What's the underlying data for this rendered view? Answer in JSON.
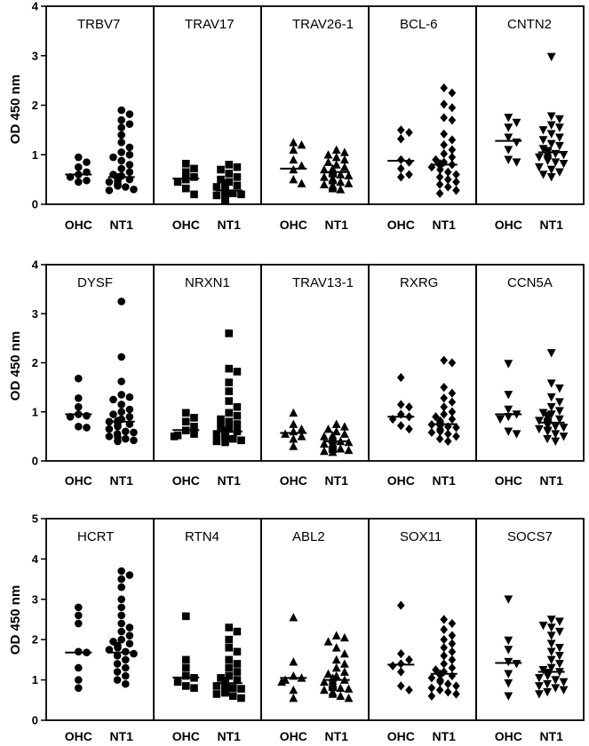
{
  "chart_data": {
    "type": "scatter",
    "ylabel": "OD 450 nm",
    "groups": [
      "OHC",
      "NT1"
    ],
    "rows": [
      {
        "ylim": [
          0,
          4
        ],
        "yticks": [
          "0",
          "1",
          "2",
          "3",
          "4"
        ],
        "panels": [
          {
            "name": "TRBV7",
            "marker": "circle",
            "OHC": [
              0.95,
              0.85,
              0.75,
              0.65,
              0.6,
              0.55,
              0.48,
              0.45
            ],
            "OHC_median": 0.6,
            "NT1": [
              1.9,
              1.82,
              1.7,
              1.62,
              1.55,
              1.4,
              1.25,
              1.15,
              1.05,
              1.0,
              0.95,
              0.88,
              0.8,
              0.72,
              0.65,
              0.6,
              0.57,
              0.55,
              0.52,
              0.5,
              0.47,
              0.45,
              0.42,
              0.4,
              0.37,
              0.35,
              0.3,
              0.28
            ],
            "NT1_median": 0.55
          },
          {
            "name": "TRAV17",
            "marker": "square",
            "OHC": [
              0.82,
              0.72,
              0.65,
              0.55,
              0.5,
              0.45,
              0.32,
              0.2
            ],
            "OHC_median": 0.52,
            "NT1": [
              0.8,
              0.75,
              0.7,
              0.62,
              0.55,
              0.5,
              0.45,
              0.42,
              0.38,
              0.35,
              0.33,
              0.3,
              0.28,
              0.26,
              0.24,
              0.22,
              0.2,
              0.18,
              0.16,
              0.15,
              0.14,
              0.13,
              0.12,
              0.11,
              0.1,
              0.1,
              0.09,
              0.08
            ],
            "NT1_median": 0.28
          },
          {
            "name": "TRAV26-1",
            "marker": "triangle",
            "OHC": [
              1.25,
              1.2,
              1.1,
              0.9,
              0.78,
              0.7,
              0.5,
              0.42
            ],
            "OHC_median": 0.72,
            "NT1": [
              1.1,
              1.05,
              1.0,
              0.95,
              0.9,
              0.85,
              0.8,
              0.75,
              0.72,
              0.7,
              0.68,
              0.66,
              0.64,
              0.62,
              0.6,
              0.58,
              0.55,
              0.52,
              0.5,
              0.48,
              0.45,
              0.42,
              0.4,
              0.38,
              0.35,
              0.32,
              0.3
            ],
            "NT1_median": 0.65
          },
          {
            "name": "BCL-6",
            "marker": "diamond",
            "OHC": [
              1.5,
              1.45,
              1.32,
              0.9,
              0.85,
              0.72,
              0.6,
              0.55
            ],
            "OHC_median": 0.88,
            "NT1": [
              2.35,
              2.25,
              2.02,
              1.95,
              1.75,
              1.7,
              1.42,
              1.3,
              1.2,
              1.1,
              1.02,
              0.95,
              0.9,
              0.85,
              0.82,
              0.8,
              0.78,
              0.75,
              0.7,
              0.65,
              0.6,
              0.55,
              0.5,
              0.45,
              0.4,
              0.35,
              0.28,
              0.22
            ],
            "NT1_median": 0.8
          },
          {
            "name": "CNTN2",
            "marker": "triangle-down",
            "OHC": [
              1.75,
              1.65,
              1.55,
              1.35,
              1.25,
              1.1,
              0.9,
              0.85
            ],
            "OHC_median": 1.28,
            "NT1": [
              2.98,
              1.78,
              1.72,
              1.6,
              1.55,
              1.5,
              1.42,
              1.35,
              1.3,
              1.22,
              1.18,
              1.12,
              1.08,
              1.05,
              1.02,
              1.0,
              0.98,
              0.95,
              0.92,
              0.88,
              0.85,
              0.82,
              0.75,
              0.7,
              0.65,
              0.6,
              0.55
            ],
            "NT1_median": 1.05
          }
        ]
      },
      {
        "ylim": [
          0,
          4
        ],
        "yticks": [
          "0",
          "1",
          "2",
          "3",
          "4"
        ],
        "panels": [
          {
            "name": "DYSF",
            "marker": "circle",
            "OHC": [
              1.68,
              1.28,
              1.1,
              0.95,
              0.92,
              0.9,
              0.7,
              0.68
            ],
            "OHC_median": 0.95,
            "NT1": [
              3.25,
              2.12,
              1.62,
              1.35,
              1.3,
              1.25,
              1.15,
              1.05,
              1.0,
              0.95,
              0.9,
              0.85,
              0.82,
              0.8,
              0.78,
              0.75,
              0.72,
              0.7,
              0.65,
              0.6,
              0.58,
              0.55,
              0.5,
              0.48,
              0.45,
              0.42,
              0.4
            ],
            "NT1_median": 0.8
          },
          {
            "name": "NRXN1",
            "marker": "square",
            "OHC": [
              0.98,
              0.88,
              0.8,
              0.7,
              0.62,
              0.55,
              0.52,
              0.5
            ],
            "OHC_median": 0.63,
            "NT1": [
              2.6,
              1.88,
              1.82,
              1.6,
              1.42,
              1.22,
              1.1,
              0.98,
              0.92,
              0.85,
              0.8,
              0.75,
              0.7,
              0.65,
              0.62,
              0.6,
              0.58,
              0.56,
              0.55,
              0.52,
              0.5,
              0.48,
              0.45,
              0.42,
              0.4,
              0.38
            ],
            "NT1_median": 0.6
          },
          {
            "name": "TRAV13-1",
            "marker": "triangle",
            "OHC": [
              0.98,
              0.75,
              0.65,
              0.6,
              0.55,
              0.5,
              0.45,
              0.3
            ],
            "OHC_median": 0.57,
            "NT1": [
              0.75,
              0.7,
              0.65,
              0.6,
              0.55,
              0.52,
              0.5,
              0.48,
              0.46,
              0.44,
              0.42,
              0.4,
              0.38,
              0.36,
              0.35,
              0.34,
              0.32,
              0.3,
              0.28,
              0.26,
              0.25,
              0.24,
              0.22,
              0.2,
              0.18
            ],
            "NT1_median": 0.4
          },
          {
            "name": "RXRG",
            "marker": "diamond",
            "OHC": [
              1.7,
              1.15,
              1.1,
              0.95,
              0.9,
              0.85,
              0.72,
              0.65
            ],
            "OHC_median": 0.9,
            "NT1": [
              2.05,
              2.0,
              1.5,
              1.38,
              1.28,
              1.2,
              1.1,
              1.0,
              0.95,
              0.9,
              0.85,
              0.82,
              0.8,
              0.78,
              0.76,
              0.74,
              0.72,
              0.7,
              0.68,
              0.65,
              0.62,
              0.6,
              0.58,
              0.55,
              0.5,
              0.45,
              0.4
            ],
            "NT1_median": 0.75
          },
          {
            "name": "CCN5A",
            "marker": "triangle-down",
            "OHC": [
              1.98,
              1.35,
              1.05,
              0.95,
              0.9,
              0.85,
              0.6,
              0.55
            ],
            "OHC_median": 0.95,
            "NT1": [
              2.2,
              1.58,
              1.48,
              1.3,
              1.2,
              1.1,
              1.02,
              0.98,
              0.95,
              0.92,
              0.88,
              0.85,
              0.82,
              0.8,
              0.78,
              0.76,
              0.74,
              0.72,
              0.7,
              0.68,
              0.65,
              0.62,
              0.6,
              0.55,
              0.5,
              0.45,
              0.4
            ],
            "NT1_median": 0.78
          }
        ]
      },
      {
        "ylim": [
          0,
          5
        ],
        "yticks": [
          "0",
          "1",
          "2",
          "3",
          "4",
          "5"
        ],
        "panels": [
          {
            "name": "HCRT",
            "marker": "circle",
            "OHC": [
              2.8,
              2.6,
              2.4,
              1.7,
              1.68,
              1.3,
              1.0,
              0.8
            ],
            "OHC_median": 1.68,
            "NT1": [
              3.7,
              3.6,
              3.5,
              3.3,
              3.0,
              2.8,
              2.6,
              2.4,
              2.3,
              2.2,
              2.1,
              2.0,
              1.95,
              1.9,
              1.85,
              1.8,
              1.75,
              1.7,
              1.65,
              1.6,
              1.5,
              1.4,
              1.3,
              1.2,
              1.1,
              1.0,
              0.9
            ],
            "NT1_median": 1.68
          },
          {
            "name": "RTN4",
            "marker": "square",
            "OHC": [
              2.58,
              1.5,
              1.3,
              1.1,
              1.05,
              0.95,
              0.85,
              0.8
            ],
            "OHC_median": 1.06,
            "NT1": [
              2.3,
              2.2,
              2.0,
              1.8,
              1.7,
              1.5,
              1.4,
              1.3,
              1.2,
              1.1,
              1.05,
              1.0,
              0.98,
              0.95,
              0.92,
              0.9,
              0.88,
              0.85,
              0.82,
              0.8,
              0.78,
              0.75,
              0.72,
              0.7,
              0.68,
              0.65,
              0.6,
              0.55
            ],
            "NT1_median": 0.92
          },
          {
            "name": "ABL2",
            "marker": "triangle",
            "OHC": [
              2.55,
              1.45,
              1.1,
              1.05,
              1.0,
              0.95,
              0.75,
              0.55
            ],
            "OHC_median": 1.05,
            "NT1": [
              2.1,
              2.05,
              1.95,
              1.8,
              1.65,
              1.5,
              1.4,
              1.3,
              1.2,
              1.15,
              1.1,
              1.05,
              1.0,
              0.98,
              0.95,
              0.92,
              0.9,
              0.88,
              0.85,
              0.82,
              0.8,
              0.78,
              0.75,
              0.7,
              0.65,
              0.6,
              0.55
            ],
            "NT1_median": 1.0
          },
          {
            "name": "SOX11",
            "marker": "diamond",
            "OHC": [
              2.85,
              1.65,
              1.5,
              1.4,
              1.35,
              1.2,
              0.85,
              0.75
            ],
            "OHC_median": 1.38,
            "NT1": [
              2.5,
              2.4,
              2.25,
              2.1,
              2.0,
              1.9,
              1.8,
              1.7,
              1.6,
              1.5,
              1.4,
              1.3,
              1.25,
              1.2,
              1.15,
              1.12,
              1.1,
              1.05,
              1.0,
              0.98,
              0.95,
              0.9,
              0.85,
              0.8,
              0.75,
              0.7,
              0.65,
              0.6
            ],
            "NT1_median": 1.15
          },
          {
            "name": "SOCS7",
            "marker": "triangle-down",
            "OHC": [
              3.0,
              1.98,
              1.75,
              1.45,
              1.4,
              1.15,
              0.92,
              0.6
            ],
            "OHC_median": 1.42,
            "NT1": [
              2.5,
              2.45,
              2.35,
              2.3,
              2.2,
              2.1,
              1.9,
              1.8,
              1.7,
              1.6,
              1.5,
              1.4,
              1.3,
              1.25,
              1.2,
              1.18,
              1.15,
              1.1,
              1.05,
              1.0,
              0.95,
              0.9,
              0.85,
              0.8,
              0.75,
              0.7,
              0.65
            ],
            "NT1_median": 1.2
          }
        ]
      }
    ]
  }
}
